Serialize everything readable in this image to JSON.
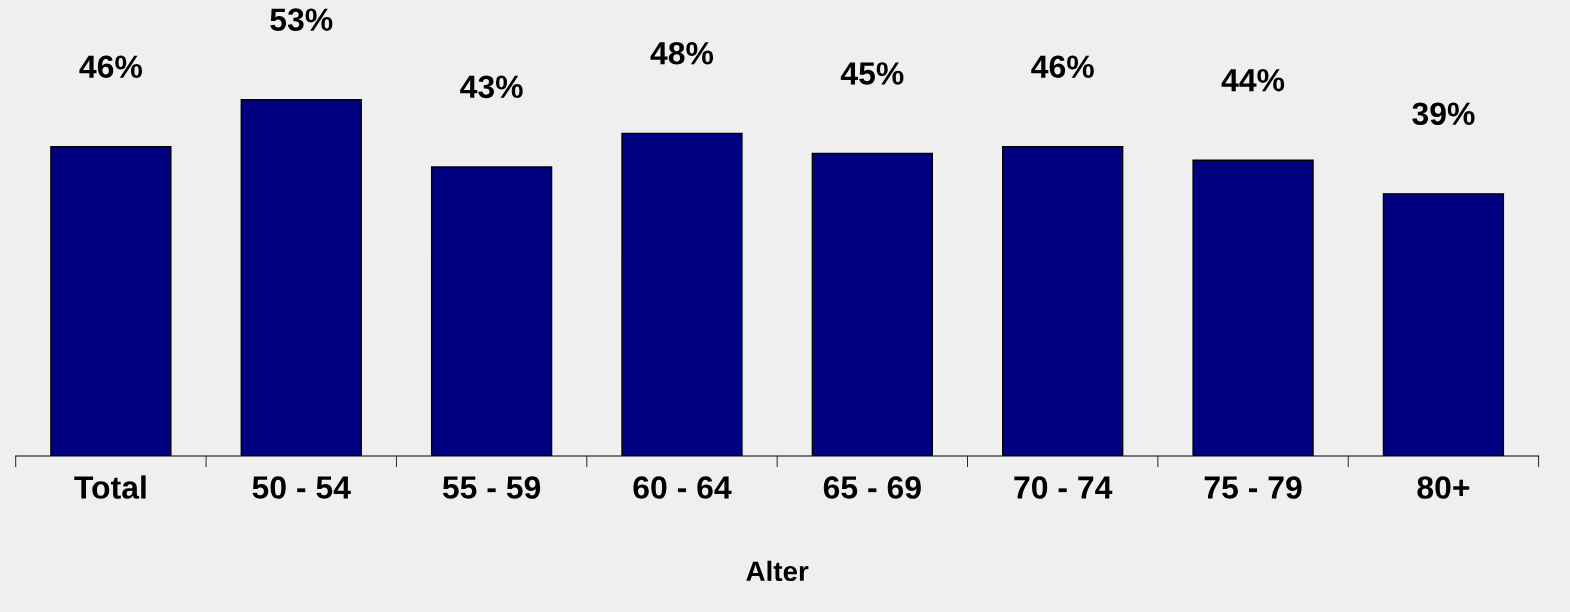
{
  "chart_data": {
    "type": "bar",
    "xlabel": "Alter",
    "categories": [
      "Total",
      "50 - 54",
      "55 - 59",
      "60 - 64",
      "65 - 69",
      "70 - 74",
      "75 - 79",
      "80+"
    ],
    "values": [
      46,
      53,
      43,
      48,
      45,
      46,
      44,
      39
    ],
    "value_labels": [
      "46%",
      "53%",
      "43%",
      "48%",
      "45%",
      "46%",
      "44%",
      "39%"
    ],
    "color": "#000080",
    "grid": false,
    "legend": false
  }
}
